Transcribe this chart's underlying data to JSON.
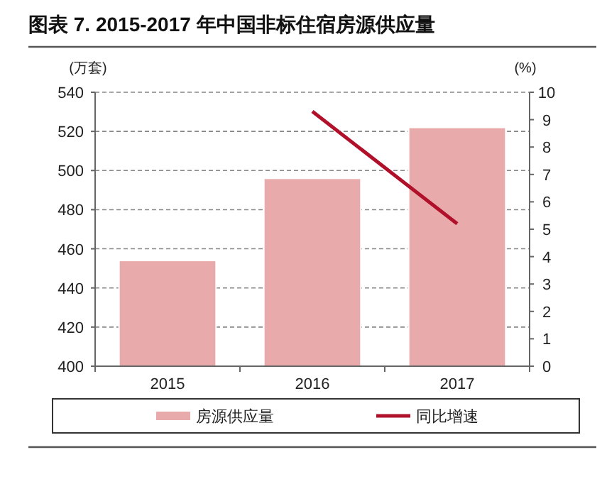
{
  "chart_data": {
    "type": "bar",
    "title": "图表 7. 2015-2017 年中国非标住宿房源供应量",
    "ylabel": "(万套)",
    "y2label": "(%)",
    "categories": [
      "2015",
      "2016",
      "2017"
    ],
    "series": [
      {
        "name": "房源供应量",
        "color": "#e8aaaa",
        "values": [
          454,
          496,
          522
        ]
      },
      {
        "name": "同比增速",
        "type": "line",
        "axis": "y2",
        "color": "#b0102a",
        "values": [
          null,
          9.3,
          5.2
        ]
      }
    ],
    "ylim": [
      400,
      540
    ],
    "yticks": [
      400,
      420,
      440,
      460,
      480,
      500,
      520,
      540
    ],
    "y2lim": [
      0,
      10
    ],
    "y2ticks": [
      0,
      1,
      2,
      3,
      4,
      5,
      6,
      7,
      8,
      9,
      10
    ],
    "grid": "y",
    "legend": "bottom"
  }
}
